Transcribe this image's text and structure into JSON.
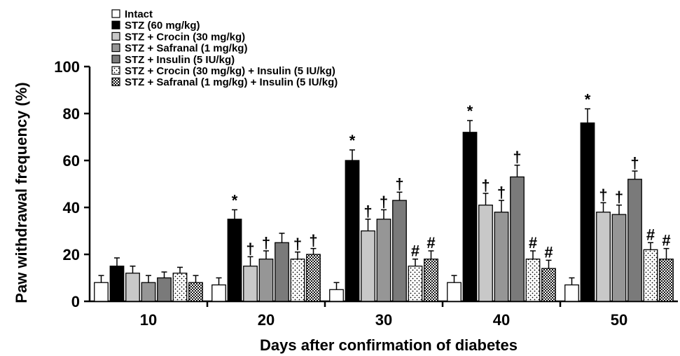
{
  "chart_data": {
    "type": "bar",
    "title": "",
    "xlabel": "Days after confirmation of diabetes",
    "ylabel": "Paw withdrawal frequency (%)",
    "ylim": [
      0,
      100
    ],
    "yticks": [
      "0",
      "20",
      "40",
      "60",
      "80",
      "100"
    ],
    "categories": [
      "10",
      "20",
      "30",
      "40",
      "50"
    ],
    "series": [
      {
        "name": "Intact",
        "values": [
          8,
          7,
          5,
          8,
          7
        ],
        "errors": [
          3,
          3,
          3,
          3,
          3
        ],
        "marks": [
          "",
          "",
          "",
          "",
          ""
        ],
        "pattern": "white",
        "color": "#ffffff"
      },
      {
        "name": "STZ (60 mg/kg)",
        "values": [
          15,
          35,
          60,
          72,
          76
        ],
        "errors": [
          3.5,
          4,
          4.5,
          5,
          6
        ],
        "marks": [
          "",
          "*",
          "*",
          "*",
          "*"
        ],
        "pattern": "solid",
        "color": "#000000"
      },
      {
        "name": "STZ + Crocin (30 mg/kg)",
        "values": [
          12,
          15,
          30,
          41,
          38
        ],
        "errors": [
          3,
          4,
          5,
          5,
          4
        ],
        "marks": [
          "",
          "†",
          "†",
          "†",
          "†"
        ],
        "pattern": "solid",
        "color": "#c8c8c8"
      },
      {
        "name": "STZ + Safranal (1 mg/kg)",
        "values": [
          8,
          18,
          35,
          38,
          37
        ],
        "errors": [
          3,
          3.5,
          4,
          5,
          4
        ],
        "marks": [
          "",
          "†",
          "†",
          "†",
          "†"
        ],
        "pattern": "solid",
        "color": "#969696"
      },
      {
        "name": "STZ + Insulin (5 IU/kg)",
        "values": [
          10,
          25,
          43,
          53,
          52
        ],
        "errors": [
          2.5,
          4,
          3.5,
          5,
          3.5
        ],
        "marks": [
          "",
          "",
          "†",
          "†",
          "†"
        ],
        "pattern": "solid",
        "color": "#7a7a7a"
      },
      {
        "name": "STZ + Crocin (30 mg/kg) + Insulin (5 IU/kg)",
        "values": [
          12,
          18,
          15,
          18,
          22
        ],
        "errors": [
          2.5,
          3,
          3,
          3.5,
          3
        ],
        "marks": [
          "",
          "†",
          "#",
          "#",
          "#"
        ],
        "pattern": "sparse-dots",
        "color": "#ffffff"
      },
      {
        "name": "STZ + Safranal (1 mg/kg) + Insulin (5 IU/kg)",
        "values": [
          8,
          20,
          18,
          14,
          18
        ],
        "errors": [
          3,
          2.5,
          3.5,
          3.5,
          4.5
        ],
        "marks": [
          "",
          "†",
          "#",
          "#",
          "#"
        ],
        "pattern": "dense-dots",
        "color": "#ffffff"
      }
    ],
    "grid": false,
    "legend_position": "top-left"
  }
}
